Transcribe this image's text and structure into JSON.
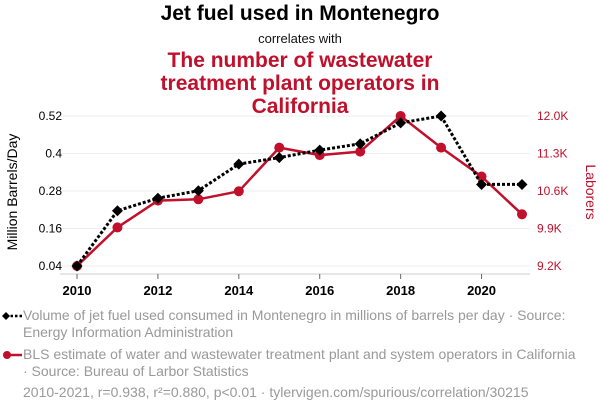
{
  "header": {
    "title": "Jet fuel used in Montenegro",
    "subtitle": "correlates with",
    "title2": "The number of wastewater treatment plant operators in California"
  },
  "chart_data": {
    "type": "line",
    "title": "Jet fuel used in Montenegro correlates with The number of wastewater treatment plant operators in California",
    "x": [
      2010,
      2011,
      2012,
      2013,
      2014,
      2015,
      2016,
      2017,
      2018,
      2019,
      2020,
      2021
    ],
    "xlim": [
      2010,
      2021
    ],
    "xticks": [
      "2010",
      "2012",
      "2014",
      "2016",
      "2018",
      "2020"
    ],
    "grid": true,
    "series": [
      {
        "name": "Volume of jet fuel used consumed in Montenegro in millions of barrels per day",
        "axis": "left",
        "color": "#000000",
        "style": "dotted",
        "marker": "diamond",
        "values": [
          0.04,
          0.217,
          0.257,
          0.281,
          0.366,
          0.387,
          0.411,
          0.431,
          0.498,
          0.52,
          0.301,
          0.301
        ]
      },
      {
        "name": "BLS estimate of water and wastewater treatment plant and system operators in California",
        "axis": "right",
        "color": "#c0102b",
        "style": "solid",
        "marker": "circle",
        "values": [
          9200,
          9920,
          10420,
          10445,
          10595,
          11410,
          11270,
          11335,
          12000,
          11410,
          10870,
          10165
        ]
      }
    ],
    "left_axis": {
      "label": "Million Barrels/Day",
      "ylim": [
        0.04,
        0.52
      ],
      "ticks": [
        0.04,
        0.16,
        0.28,
        0.4,
        0.52
      ],
      "tick_labels": [
        "0.04",
        "0.16",
        "0.28",
        "0.4",
        "0.52"
      ],
      "color": "#000000"
    },
    "right_axis": {
      "label": "Laborers",
      "ylim": [
        9200,
        12000
      ],
      "ticks": [
        9200,
        9900,
        10600,
        11300,
        12000
      ],
      "tick_labels": [
        "9.2K",
        "9.9K",
        "10.6K",
        "11.3K",
        "12.0K"
      ],
      "color": "#c0102b"
    },
    "legend_position": "bottom"
  },
  "legend": [
    {
      "text": "Volume of jet fuel used consumed in Montenegro in millions of barrels per day · Source: Energy Information Administration"
    },
    {
      "text": "BLS estimate of water and wastewater treatment plant and system operators in California · Source: Bureau of Larbor Statistics"
    }
  ],
  "footer": "2010-2021, r=0.938, r²=0.880, p<0.01 · tylervigen.com/spurious/correlation/30215"
}
